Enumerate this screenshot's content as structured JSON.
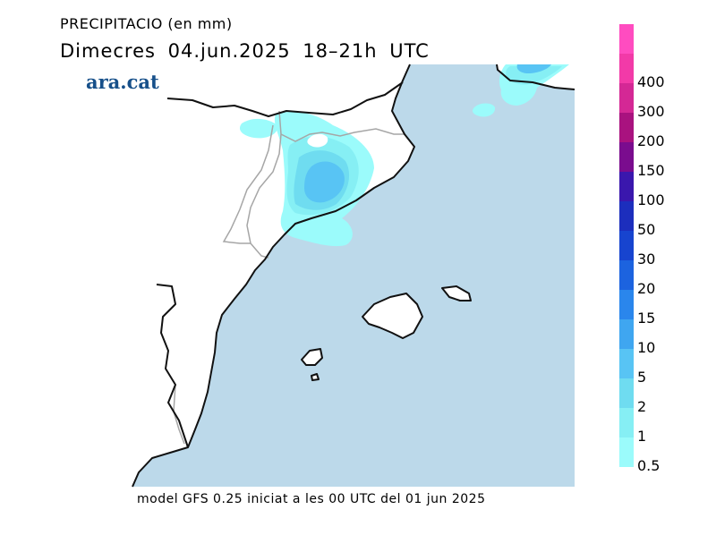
{
  "header": {
    "title": "PRECIPITACIO (en mm)",
    "date_line": "Dimecres  04.jun.2025 18–21h UTC",
    "logo": "ara.cat"
  },
  "footer": {
    "model_info": "model GFS 0.25 iniciat a les 00 UTC del 01 jun 2025"
  },
  "legend": {
    "unit": "mm",
    "levels": [
      {
        "label": "0.5",
        "color": "#9bfbfb"
      },
      {
        "label": "1",
        "color": "#86eff4"
      },
      {
        "label": "2",
        "color": "#6fdcf0"
      },
      {
        "label": "5",
        "color": "#58c4f4"
      },
      {
        "label": "10",
        "color": "#3fa6f0"
      },
      {
        "label": "15",
        "color": "#2a86ec"
      },
      {
        "label": "20",
        "color": "#1c63df"
      },
      {
        "label": "30",
        "color": "#1744cf"
      },
      {
        "label": "50",
        "color": "#1c2ebd"
      },
      {
        "label": "100",
        "color": "#3a17ad"
      },
      {
        "label": "150",
        "color": "#7a0c8e"
      },
      {
        "label": "200",
        "color": "#a9127f"
      },
      {
        "label": "300",
        "color": "#d42895"
      },
      {
        "label": "400",
        "color": "#f23aa8"
      },
      {
        "label": "",
        "color": "#ff4cc0"
      }
    ]
  },
  "colors": {
    "sea": "#bcd9ea",
    "land": "#ffffff",
    "coastline": "#111111",
    "borders": "#a6a6a6"
  }
}
